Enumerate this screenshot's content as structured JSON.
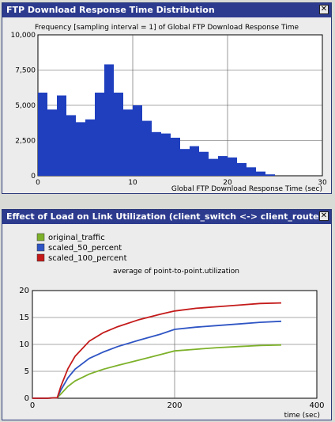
{
  "window1": {
    "title": "FTP Download Response Time Distribution",
    "close_glyph": "✕"
  },
  "window2": {
    "title": "Effect of Load on Link Utilization (client_switch <-> client_router)",
    "close_glyph": "✕"
  },
  "chart_data": [
    {
      "type": "bar",
      "title": "Frequency [sampling interval = 1] of Global FTP Download Response Time",
      "xlabel": "Global FTP Download Response Time (sec)",
      "ylabel": "",
      "bar_color": "#1f3fbf",
      "xlim": [
        0,
        30
      ],
      "ylim": [
        0,
        10000
      ],
      "x_ticks": [
        0,
        10,
        20,
        30
      ],
      "y_ticks": [
        0,
        2500,
        5000,
        7500,
        10000
      ],
      "y_tick_labels": [
        "0",
        "2,500",
        "5,000",
        "7,500",
        "10,000"
      ],
      "grid": true,
      "bins": [
        {
          "x0": 0,
          "x1": 1,
          "value": 5900
        },
        {
          "x0": 1,
          "x1": 2,
          "value": 4700
        },
        {
          "x0": 2,
          "x1": 3,
          "value": 5700
        },
        {
          "x0": 3,
          "x1": 4,
          "value": 4300
        },
        {
          "x0": 4,
          "x1": 5,
          "value": 3800
        },
        {
          "x0": 5,
          "x1": 6,
          "value": 4000
        },
        {
          "x0": 6,
          "x1": 7,
          "value": 5900
        },
        {
          "x0": 7,
          "x1": 8,
          "value": 7900
        },
        {
          "x0": 8,
          "x1": 9,
          "value": 5900
        },
        {
          "x0": 9,
          "x1": 10,
          "value": 4700
        },
        {
          "x0": 10,
          "x1": 11,
          "value": 5000
        },
        {
          "x0": 11,
          "x1": 12,
          "value": 3900
        },
        {
          "x0": 12,
          "x1": 13,
          "value": 3100
        },
        {
          "x0": 13,
          "x1": 14,
          "value": 3000
        },
        {
          "x0": 14,
          "x1": 15,
          "value": 2700
        },
        {
          "x0": 15,
          "x1": 16,
          "value": 1900
        },
        {
          "x0": 16,
          "x1": 17,
          "value": 2100
        },
        {
          "x0": 17,
          "x1": 18,
          "value": 1700
        },
        {
          "x0": 18,
          "x1": 19,
          "value": 1200
        },
        {
          "x0": 19,
          "x1": 20,
          "value": 1400
        },
        {
          "x0": 20,
          "x1": 21,
          "value": 1300
        },
        {
          "x0": 21,
          "x1": 22,
          "value": 900
        },
        {
          "x0": 22,
          "x1": 23,
          "value": 600
        },
        {
          "x0": 23,
          "x1": 24,
          "value": 300
        },
        {
          "x0": 24,
          "x1": 25,
          "value": 100
        }
      ]
    },
    {
      "type": "line",
      "title": "average of point-to-point.utilization",
      "xlabel": "time (sec)",
      "ylabel": "",
      "xlim": [
        0,
        400
      ],
      "ylim": [
        0,
        20
      ],
      "x_ticks": [
        0,
        200,
        400
      ],
      "y_ticks": [
        0,
        5,
        10,
        15,
        20
      ],
      "grid": true,
      "legend_position": "top-left",
      "series": [
        {
          "name": "original_traffic",
          "color": "#7db12a",
          "points": [
            [
              0,
              0
            ],
            [
              20,
              0
            ],
            [
              35,
              0.1
            ],
            [
              40,
              0.8
            ],
            [
              50,
              2.2
            ],
            [
              60,
              3.2
            ],
            [
              80,
              4.5
            ],
            [
              100,
              5.4
            ],
            [
              120,
              6.1
            ],
            [
              150,
              7.1
            ],
            [
              180,
              8.1
            ],
            [
              200,
              8.8
            ],
            [
              230,
              9.1
            ],
            [
              260,
              9.4
            ],
            [
              290,
              9.6
            ],
            [
              320,
              9.8
            ],
            [
              350,
              9.9
            ]
          ]
        },
        {
          "name": "scaled_50_percent",
          "color": "#2f55c4",
          "points": [
            [
              0,
              0
            ],
            [
              20,
              0
            ],
            [
              35,
              0.1
            ],
            [
              40,
              1.5
            ],
            [
              50,
              3.8
            ],
            [
              60,
              5.4
            ],
            [
              80,
              7.4
            ],
            [
              100,
              8.6
            ],
            [
              120,
              9.6
            ],
            [
              150,
              10.8
            ],
            [
              180,
              11.9
            ],
            [
              200,
              12.8
            ],
            [
              230,
              13.2
            ],
            [
              260,
              13.5
            ],
            [
              290,
              13.8
            ],
            [
              320,
              14.1
            ],
            [
              350,
              14.3
            ]
          ]
        },
        {
          "name": "scaled_100_percent",
          "color": "#c41a1a",
          "points": [
            [
              0,
              0
            ],
            [
              20,
              0
            ],
            [
              35,
              0.1
            ],
            [
              40,
              2.2
            ],
            [
              50,
              5.5
            ],
            [
              60,
              7.8
            ],
            [
              80,
              10.6
            ],
            [
              100,
              12.2
            ],
            [
              120,
              13.3
            ],
            [
              150,
              14.6
            ],
            [
              180,
              15.6
            ],
            [
              200,
              16.2
            ],
            [
              230,
              16.7
            ],
            [
              260,
              17.0
            ],
            [
              290,
              17.3
            ],
            [
              320,
              17.6
            ],
            [
              350,
              17.7
            ]
          ]
        }
      ]
    }
  ]
}
